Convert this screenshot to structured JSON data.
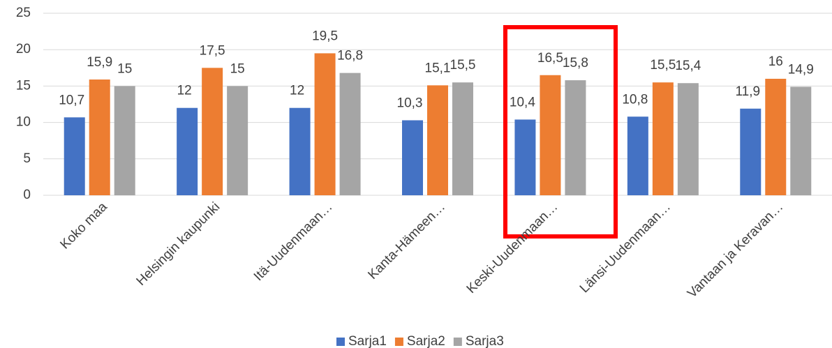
{
  "chart_data": {
    "type": "bar",
    "categories": [
      "Koko maa",
      "Helsingin kaupunki",
      "Itä-Uudenmaan…",
      "Kanta-Hämeen…",
      "Keski-Uudenmaan…",
      "Länsi-Uudenmaan…",
      "Vantaan ja Keravan…"
    ],
    "series": [
      {
        "name": "Sarja1",
        "color": "#4472c4",
        "values": [
          10.7,
          12,
          12,
          10.3,
          10.4,
          10.8,
          11.9
        ],
        "value_labels": [
          "10,7",
          "12",
          "12",
          "10,3",
          "10,4",
          "10,8",
          "11,9"
        ]
      },
      {
        "name": "Sarja2",
        "color": "#ed7d31",
        "values": [
          15.9,
          17.5,
          19.5,
          15.1,
          16.5,
          15.5,
          16
        ],
        "value_labels": [
          "15,9",
          "17,5",
          "19,5",
          "15,1",
          "16,5",
          "15,5",
          "16"
        ]
      },
      {
        "name": "Sarja3",
        "color": "#a5a5a5",
        "values": [
          15,
          15,
          16.8,
          15.5,
          15.8,
          15.4,
          14.9
        ],
        "value_labels": [
          "15",
          "15",
          "16,8",
          "15,5",
          "15,8",
          "15,4",
          "14,9"
        ]
      }
    ],
    "ylim": [
      0,
      25
    ],
    "yticks": [
      0,
      5,
      10,
      15,
      20,
      25
    ],
    "grid": true,
    "legend": "bottom"
  }
}
